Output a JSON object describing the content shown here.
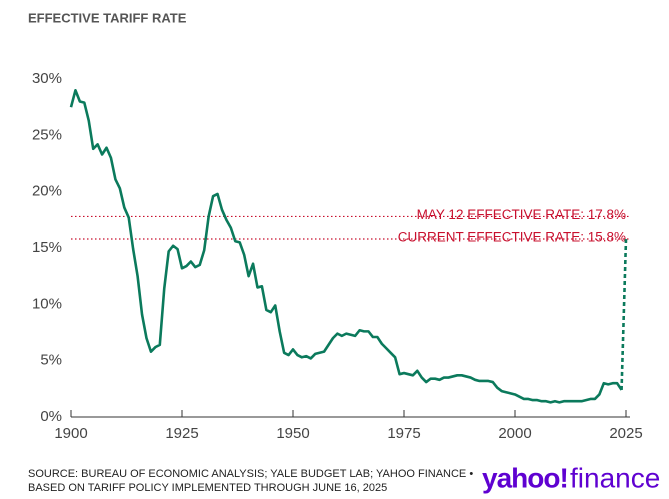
{
  "chart_data": {
    "type": "line",
    "title": "EFFECTIVE TARIFF RATE",
    "series": [
      {
        "color": "#0b7a5c",
        "dash": false,
        "x": [
          1900,
          1901,
          1902,
          1903,
          1904,
          1905,
          1906,
          1907,
          1908,
          1909,
          1910,
          1911,
          1912,
          1913,
          1914,
          1915,
          1916,
          1917,
          1918,
          1919,
          1920,
          1921,
          1922,
          1923,
          1924,
          1925,
          1926,
          1927,
          1928,
          1929,
          1930,
          1931,
          1932,
          1933,
          1934,
          1935,
          1936,
          1937,
          1938,
          1939,
          1940,
          1941,
          1942,
          1943,
          1944,
          1945,
          1946,
          1947,
          1948,
          1949,
          1950,
          1951,
          1952,
          1953,
          1954,
          1955,
          1956,
          1957,
          1958,
          1959,
          1960,
          1961,
          1962,
          1963,
          1964,
          1965,
          1966,
          1967,
          1968,
          1969,
          1970,
          1971,
          1972,
          1973,
          1974,
          1975,
          1976,
          1977,
          1978,
          1979,
          1980,
          1981,
          1982,
          1983,
          1984,
          1985,
          1986,
          1987,
          1988,
          1989,
          1990,
          1991,
          1992,
          1993,
          1994,
          1995,
          1996,
          1997,
          1998,
          1999,
          2000,
          2001,
          2002,
          2003,
          2004,
          2005,
          2006,
          2007,
          2008,
          2009,
          2010,
          2011,
          2012,
          2013,
          2014,
          2015,
          2016,
          2017,
          2018,
          2019,
          2020,
          2021,
          2022,
          2023,
          2024
        ],
        "values": [
          27.5,
          29,
          28,
          27.9,
          26.3,
          23.8,
          24.2,
          23.3,
          23.9,
          23,
          21.1,
          20.3,
          18.6,
          17.7,
          14.9,
          12.5,
          9.1,
          7,
          5.8,
          6.2,
          6.4,
          11.4,
          14.7,
          15.2,
          14.9,
          13.2,
          13.4,
          13.8,
          13.3,
          13.5,
          14.8,
          17.8,
          19.6,
          19.8,
          18.4,
          17.5,
          16.8,
          15.6,
          15.5,
          14.4,
          12.5,
          13.6,
          11.5,
          11.6,
          9.5,
          9.3,
          9.9,
          7.6,
          5.7,
          5.5,
          6,
          5.5,
          5.3,
          5.4,
          5.2,
          5.6,
          5.7,
          5.8,
          6.4,
          7,
          7.4,
          7.2,
          7.4,
          7.3,
          7.2,
          7.7,
          7.6,
          7.6,
          7.1,
          7.1,
          6.5,
          6.1,
          5.7,
          5.3,
          3.8,
          3.9,
          3.8,
          3.7,
          4.1,
          3.5,
          3.1,
          3.4,
          3.4,
          3.3,
          3.5,
          3.5,
          3.6,
          3.7,
          3.7,
          3.6,
          3.5,
          3.3,
          3.2,
          3.2,
          3.2,
          3.1,
          2.6,
          2.3,
          2.2,
          2.1,
          2,
          1.8,
          1.6,
          1.6,
          1.5,
          1.5,
          1.4,
          1.4,
          1.3,
          1.4,
          1.3,
          1.4,
          1.4,
          1.4,
          1.4,
          1.4,
          1.5,
          1.6,
          1.6,
          2,
          3,
          2.9,
          3,
          3,
          2.4
        ]
      },
      {
        "color": "#0b7a5c",
        "dash": true,
        "x": [
          2024,
          2025
        ],
        "values": [
          2.4,
          15.8
        ]
      }
    ],
    "reference_lines": [
      {
        "value": 17.8,
        "label": "MAY 12 EFFECTIVE RATE: 17.8%",
        "color": "#c8102e"
      },
      {
        "value": 15.8,
        "label": "CURRENT EFFECTIVE RATE: 15.8%",
        "color": "#c8102e"
      }
    ],
    "xlim": [
      1900,
      2025
    ],
    "xticks": [
      1900,
      1925,
      1950,
      1975,
      2000,
      2025
    ],
    "ylim": [
      0,
      30
    ],
    "yticks": [
      {
        "value": 0,
        "label": "0%"
      },
      {
        "value": 5,
        "label": "5%"
      },
      {
        "value": 10,
        "label": "10%"
      },
      {
        "value": 15,
        "label": "15%"
      },
      {
        "value": 20,
        "label": "20%"
      },
      {
        "value": 25,
        "label": "25%"
      },
      {
        "value": 30,
        "label": "30%"
      }
    ],
    "source": [
      "SOURCE: BUREAU OF ECONOMIC ANALYSIS; YALE BUDGET LAB; YAHOO FINANCE •",
      "BASED ON TARIFF POLICY IMPLEMENTED THROUGH JUNE 16, 2025"
    ],
    "logo": {
      "brand": "yahoo!",
      "product": "finance"
    }
  }
}
